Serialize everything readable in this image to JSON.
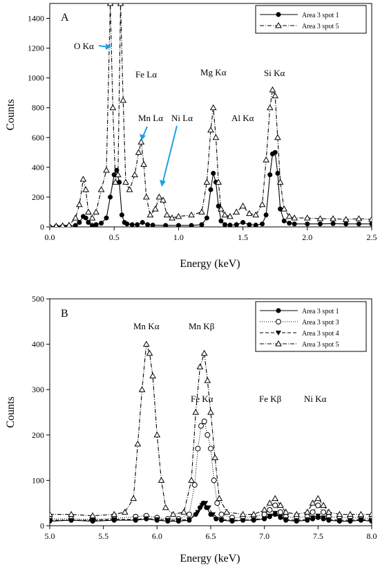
{
  "chart_data": [
    {
      "type": "line",
      "panel_label": "A",
      "xlabel": "Energy (keV)",
      "ylabel": "Counts",
      "xlim": [
        0.0,
        2.5
      ],
      "ylim": [
        0,
        1500
      ],
      "x_ticks": [
        "0.0",
        "0.5",
        "1.0",
        "1.5",
        "2.0",
        "2.5"
      ],
      "y_ticks": [
        "0",
        "200",
        "400",
        "600",
        "800",
        "1000",
        "1200",
        "1400"
      ],
      "grid": false,
      "legend_position": "top-right",
      "series": [
        {
          "name": "Area 3 spot 1",
          "marker": "filled-circle",
          "line_style": "solid",
          "x": [
            0.0,
            0.05,
            0.1,
            0.15,
            0.2,
            0.23,
            0.26,
            0.28,
            0.3,
            0.33,
            0.36,
            0.4,
            0.44,
            0.47,
            0.5,
            0.52,
            0.54,
            0.56,
            0.58,
            0.6,
            0.64,
            0.68,
            0.72,
            0.76,
            0.8,
            0.9,
            1.0,
            1.1,
            1.18,
            1.22,
            1.25,
            1.27,
            1.29,
            1.31,
            1.33,
            1.36,
            1.4,
            1.45,
            1.5,
            1.55,
            1.6,
            1.65,
            1.68,
            1.71,
            1.73,
            1.75,
            1.77,
            1.79,
            1.82,
            1.86,
            1.9,
            2.0,
            2.1,
            2.2,
            2.3,
            2.4,
            2.5
          ],
          "values": [
            0,
            3,
            4,
            6,
            10,
            30,
            70,
            60,
            30,
            10,
            15,
            25,
            60,
            200,
            350,
            380,
            300,
            80,
            30,
            20,
            15,
            15,
            30,
            15,
            12,
            10,
            10,
            10,
            15,
            60,
            250,
            360,
            300,
            140,
            40,
            15,
            12,
            15,
            30,
            15,
            12,
            20,
            80,
            350,
            490,
            500,
            360,
            120,
            40,
            25,
            20,
            20,
            20,
            22,
            20,
            20,
            20
          ]
        },
        {
          "name": "Area 3 spot 5",
          "marker": "open-triangle",
          "line_style": "dash-dot",
          "x": [
            0.0,
            0.05,
            0.1,
            0.15,
            0.2,
            0.23,
            0.26,
            0.28,
            0.3,
            0.33,
            0.36,
            0.4,
            0.44,
            0.47,
            0.49,
            0.51,
            0.53,
            0.55,
            0.57,
            0.59,
            0.62,
            0.66,
            0.69,
            0.71,
            0.73,
            0.75,
            0.78,
            0.82,
            0.85,
            0.88,
            0.91,
            0.95,
            1.0,
            1.1,
            1.18,
            1.22,
            1.25,
            1.27,
            1.29,
            1.31,
            1.33,
            1.36,
            1.4,
            1.45,
            1.5,
            1.55,
            1.6,
            1.65,
            1.68,
            1.71,
            1.73,
            1.75,
            1.77,
            1.79,
            1.82,
            1.86,
            1.9,
            2.0,
            2.1,
            2.2,
            2.3,
            2.4,
            2.5
          ],
          "values": [
            0,
            5,
            8,
            12,
            60,
            150,
            320,
            250,
            100,
            60,
            100,
            250,
            380,
            1500,
            800,
            300,
            350,
            1500,
            850,
            300,
            250,
            350,
            500,
            570,
            420,
            200,
            80,
            120,
            200,
            180,
            80,
            60,
            70,
            80,
            100,
            300,
            650,
            800,
            600,
            300,
            120,
            80,
            70,
            100,
            140,
            90,
            80,
            150,
            450,
            800,
            920,
            880,
            600,
            300,
            120,
            70,
            60,
            60,
            55,
            55,
            50,
            55,
            50
          ]
        }
      ],
      "annotations": [
        "O Kα",
        "Fe Lα",
        "Mg Kα",
        "Si Kα",
        "Mn Lα",
        "Ni Lα",
        "Al Kα"
      ]
    },
    {
      "type": "line",
      "panel_label": "B",
      "xlabel": "Energy (keV)",
      "ylabel": "Counts",
      "xlim": [
        5.0,
        8.0
      ],
      "ylim": [
        0,
        500
      ],
      "x_ticks": [
        "5.0",
        "5.5",
        "6.0",
        "6.5",
        "7.0",
        "7.5",
        "8.0"
      ],
      "y_ticks": [
        "0",
        "100",
        "200",
        "300",
        "400",
        "500"
      ],
      "grid": false,
      "legend_position": "top-right",
      "series": [
        {
          "name": "Area 3 spot 1",
          "marker": "filled-circle",
          "line_style": "solid",
          "x": [
            5.0,
            5.2,
            5.4,
            5.6,
            5.8,
            5.9,
            6.0,
            6.1,
            6.2,
            6.3,
            6.36,
            6.4,
            6.43,
            6.46,
            6.5,
            6.55,
            6.6,
            6.7,
            6.8,
            6.9,
            7.0,
            7.05,
            7.1,
            7.15,
            7.2,
            7.3,
            7.4,
            7.45,
            7.5,
            7.55,
            7.6,
            7.7,
            7.8,
            7.9,
            8.0
          ],
          "values": [
            10,
            12,
            10,
            12,
            12,
            15,
            12,
            10,
            10,
            12,
            25,
            40,
            50,
            40,
            25,
            15,
            12,
            10,
            12,
            12,
            15,
            20,
            25,
            18,
            12,
            10,
            12,
            15,
            18,
            15,
            12,
            10,
            10,
            12,
            10
          ]
        },
        {
          "name": "Area 3 spot 3",
          "marker": "open-circle",
          "line_style": "dotted",
          "x": [
            5.0,
            5.2,
            5.4,
            5.6,
            5.8,
            5.9,
            6.0,
            6.1,
            6.2,
            6.3,
            6.35,
            6.38,
            6.41,
            6.44,
            6.47,
            6.5,
            6.53,
            6.56,
            6.6,
            6.7,
            6.8,
            6.9,
            7.0,
            7.05,
            7.1,
            7.15,
            7.2,
            7.3,
            7.4,
            7.45,
            7.5,
            7.55,
            7.6,
            7.7,
            7.8,
            7.9,
            8.0
          ],
          "values": [
            15,
            15,
            14,
            16,
            20,
            22,
            18,
            15,
            15,
            25,
            90,
            170,
            220,
            230,
            200,
            170,
            100,
            50,
            25,
            18,
            18,
            20,
            25,
            35,
            45,
            30,
            20,
            18,
            20,
            30,
            45,
            30,
            20,
            18,
            18,
            18,
            15
          ]
        },
        {
          "name": "Area 3 spot 4",
          "marker": "filled-triangle-down",
          "line_style": "dashed",
          "x": [
            5.0,
            5.2,
            5.4,
            5.6,
            5.8,
            5.9,
            6.0,
            6.1,
            6.2,
            6.3,
            6.38,
            6.42,
            6.45,
            6.48,
            6.52,
            6.6,
            6.7,
            6.8,
            6.9,
            7.0,
            7.05,
            7.1,
            7.15,
            7.2,
            7.3,
            7.4,
            7.45,
            7.5,
            7.55,
            7.6,
            7.7,
            7.8,
            7.9,
            8.0
          ],
          "values": [
            12,
            12,
            12,
            14,
            14,
            16,
            14,
            12,
            12,
            14,
            30,
            45,
            50,
            40,
            25,
            14,
            12,
            12,
            14,
            16,
            22,
            28,
            20,
            14,
            12,
            14,
            18,
            22,
            18,
            14,
            12,
            12,
            14,
            12
          ]
        },
        {
          "name": "Area 3 spot 5",
          "marker": "open-triangle",
          "line_style": "dash-dot",
          "x": [
            5.0,
            5.2,
            5.4,
            5.6,
            5.7,
            5.78,
            5.82,
            5.86,
            5.9,
            5.93,
            5.96,
            6.0,
            6.04,
            6.08,
            6.15,
            6.25,
            6.32,
            6.36,
            6.4,
            6.44,
            6.47,
            6.5,
            6.54,
            6.58,
            6.65,
            6.8,
            6.9,
            7.0,
            7.05,
            7.1,
            7.15,
            7.2,
            7.3,
            7.4,
            7.45,
            7.5,
            7.55,
            7.6,
            7.7,
            7.8,
            7.9,
            8.0
          ],
          "values": [
            25,
            25,
            22,
            25,
            30,
            60,
            180,
            300,
            400,
            380,
            330,
            200,
            100,
            40,
            25,
            30,
            100,
            250,
            350,
            380,
            320,
            250,
            150,
            60,
            30,
            25,
            25,
            35,
            50,
            60,
            45,
            30,
            25,
            30,
            50,
            60,
            45,
            30,
            25,
            25,
            25,
            25
          ]
        }
      ],
      "annotations": [
        "Mn Kα",
        "Mn Kβ",
        "Fe Kα",
        "Fe Kβ",
        "Ni Kα"
      ]
    }
  ],
  "arrow_color": "#1ba1e2"
}
